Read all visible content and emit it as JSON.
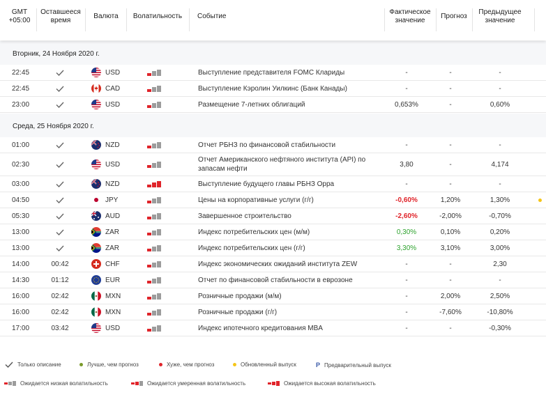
{
  "header": {
    "gmt": "GMT +05:00",
    "remaining": "Оставшееся время",
    "currency": "Валюта",
    "volatility": "Волатильность",
    "event": "Событие",
    "actual": "Фактическое значение",
    "forecast": "Прогноз",
    "previous": "Предыдущее значение"
  },
  "days": [
    {
      "label": "Вторник, 24 Ноября 2020 г.",
      "rows": [
        {
          "time": "22:45",
          "remaining": "",
          "done": true,
          "flag": "us",
          "currency": "USD",
          "volatility": 1,
          "event": "Выступление представителя FOMC Клариды",
          "actual": "-",
          "forecast": "-",
          "previous": "-"
        },
        {
          "time": "22:45",
          "remaining": "",
          "done": true,
          "flag": "ca",
          "currency": "CAD",
          "volatility": 1,
          "event": "Выступление Кэролин Уилкинс (Банк Канады)",
          "actual": "-",
          "forecast": "-",
          "previous": "-"
        },
        {
          "time": "23:00",
          "remaining": "",
          "done": true,
          "flag": "us",
          "currency": "USD",
          "volatility": 1,
          "event": "Размещение 7-летних облигаций",
          "actual": "0,653%",
          "forecast": "-",
          "previous": "0,60%"
        }
      ]
    },
    {
      "label": "Среда, 25 Ноября 2020 г.",
      "rows": [
        {
          "time": "01:00",
          "remaining": "",
          "done": true,
          "flag": "nz",
          "currency": "NZD",
          "volatility": 1,
          "event": "Отчет РБНЗ по финансовой стабильности",
          "actual": "-",
          "forecast": "-",
          "previous": "-"
        },
        {
          "time": "02:30",
          "remaining": "",
          "done": true,
          "flag": "us",
          "currency": "USD",
          "volatility": 1,
          "event": "Отчет Американского нефтяного института (API) по запасам нефти",
          "actual": "3,80",
          "forecast": "-",
          "previous": "4,174"
        },
        {
          "time": "03:00",
          "remaining": "",
          "done": true,
          "flag": "nz",
          "currency": "NZD",
          "volatility": 3,
          "event": "Выступление будущего главы РБНЗ Орра",
          "actual": "-",
          "forecast": "-",
          "previous": "-"
        },
        {
          "time": "04:50",
          "remaining": "",
          "done": true,
          "flag": "jp",
          "currency": "JPY",
          "volatility": 1,
          "event": "Цены на корпоративные услуги (г/г)",
          "actual": "-0,60%",
          "actualClass": "neg",
          "forecast": "1,20%",
          "previous": "1,30%",
          "dot": "#f5c518"
        },
        {
          "time": "05:30",
          "remaining": "",
          "done": true,
          "flag": "au",
          "currency": "AUD",
          "volatility": 1,
          "event": "Завершенное строительство",
          "actual": "-2,60%",
          "actualClass": "neg",
          "forecast": "-2,00%",
          "previous": "-0,70%"
        },
        {
          "time": "13:00",
          "remaining": "",
          "done": true,
          "flag": "za",
          "currency": "ZAR",
          "volatility": 1,
          "event": "Индекс потребительских цен (м/м)",
          "actual": "0,30%",
          "actualClass": "pos",
          "forecast": "0,10%",
          "previous": "0,20%"
        },
        {
          "time": "13:00",
          "remaining": "",
          "done": true,
          "flag": "za",
          "currency": "ZAR",
          "volatility": 1,
          "event": "Индекс потребительских цен (г/г)",
          "actual": "3,30%",
          "actualClass": "pos",
          "forecast": "3,10%",
          "previous": "3,00%"
        },
        {
          "time": "14:00",
          "remaining": "00:42",
          "done": false,
          "flag": "ch",
          "currency": "CHF",
          "volatility": 1,
          "event": "Индекс экономических ожиданий института ZEW",
          "actual": "-",
          "forecast": "-",
          "previous": "2,30"
        },
        {
          "time": "14:30",
          "remaining": "01:12",
          "done": false,
          "flag": "eu",
          "currency": "EUR",
          "volatility": 1,
          "event": "Отчет по финансовой стабильности в еврозоне",
          "actual": "-",
          "forecast": "-",
          "previous": "-"
        },
        {
          "time": "16:00",
          "remaining": "02:42",
          "done": false,
          "flag": "mx",
          "currency": "MXN",
          "volatility": 1,
          "event": "Розничные продажи (м/м)",
          "actual": "-",
          "forecast": "2,00%",
          "previous": "2,50%"
        },
        {
          "time": "16:00",
          "remaining": "02:42",
          "done": false,
          "flag": "mx",
          "currency": "MXN",
          "volatility": 1,
          "event": "Розничные продажи (г/г)",
          "actual": "-",
          "forecast": "-7,60%",
          "previous": "-10,80%"
        },
        {
          "time": "17:00",
          "remaining": "03:42",
          "done": false,
          "flag": "us",
          "currency": "USD",
          "volatility": 1,
          "event": "Индекс ипотечного кредитования MBA",
          "actual": "-",
          "forecast": "-",
          "previous": "-0,30%"
        }
      ]
    }
  ],
  "legend": {
    "only_description": "Только описание",
    "better": "Лучше, чем прогноз",
    "worse": "Хуже, чем прогноз",
    "updated": "Обновленный выпуск",
    "preliminary_mark": "P",
    "preliminary": "Предварительный выпуск",
    "low_vol": "Ожидается низкая волатильность",
    "mid_vol": "Ожидается умеренная волатильность",
    "high_vol": "Ожидается высокая волатильность"
  },
  "colors": {
    "better": "#7a9a2a",
    "worse": "#e0242a",
    "updated": "#f5c518",
    "negative": "#e0242a",
    "positive": "#2ea32e"
  }
}
